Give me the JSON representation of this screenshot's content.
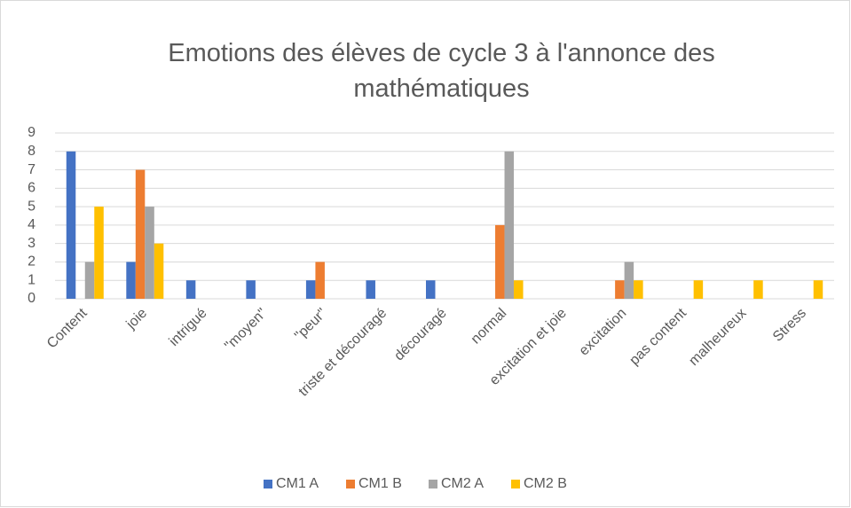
{
  "chart_data": {
    "type": "bar",
    "title": "Emotions des élèves de cycle 3 à l'annonce des mathématiques",
    "categories": [
      "Content",
      "joie",
      "intrigué",
      "\"moyen\"",
      "\"peur\"",
      "triste et découragé",
      "découragé",
      "normal",
      "excitation et joie",
      "excitation",
      "pas content",
      "malheureux",
      "Stress"
    ],
    "series": [
      {
        "name": "CM1 A",
        "color": "#4472c4",
        "values": [
          8,
          2,
          1,
          1,
          1,
          1,
          1,
          0,
          0,
          0,
          0,
          0,
          0
        ]
      },
      {
        "name": "CM1 B",
        "color": "#ed7d31",
        "values": [
          0,
          7,
          0,
          0,
          2,
          0,
          0,
          4,
          0,
          1,
          0,
          0,
          0
        ]
      },
      {
        "name": "CM2 A",
        "color": "#a5a5a5",
        "values": [
          2,
          5,
          0,
          0,
          0,
          0,
          0,
          8,
          0,
          2,
          0,
          0,
          0
        ]
      },
      {
        "name": "CM2 B",
        "color": "#ffc000",
        "values": [
          5,
          3,
          0,
          0,
          0,
          0,
          0,
          1,
          0,
          1,
          1,
          1,
          1
        ]
      }
    ],
    "ylim": [
      0,
      9
    ],
    "yticks": [
      0,
      1,
      2,
      3,
      4,
      5,
      6,
      7,
      8,
      9
    ],
    "grid": true,
    "legend": "bottom"
  }
}
